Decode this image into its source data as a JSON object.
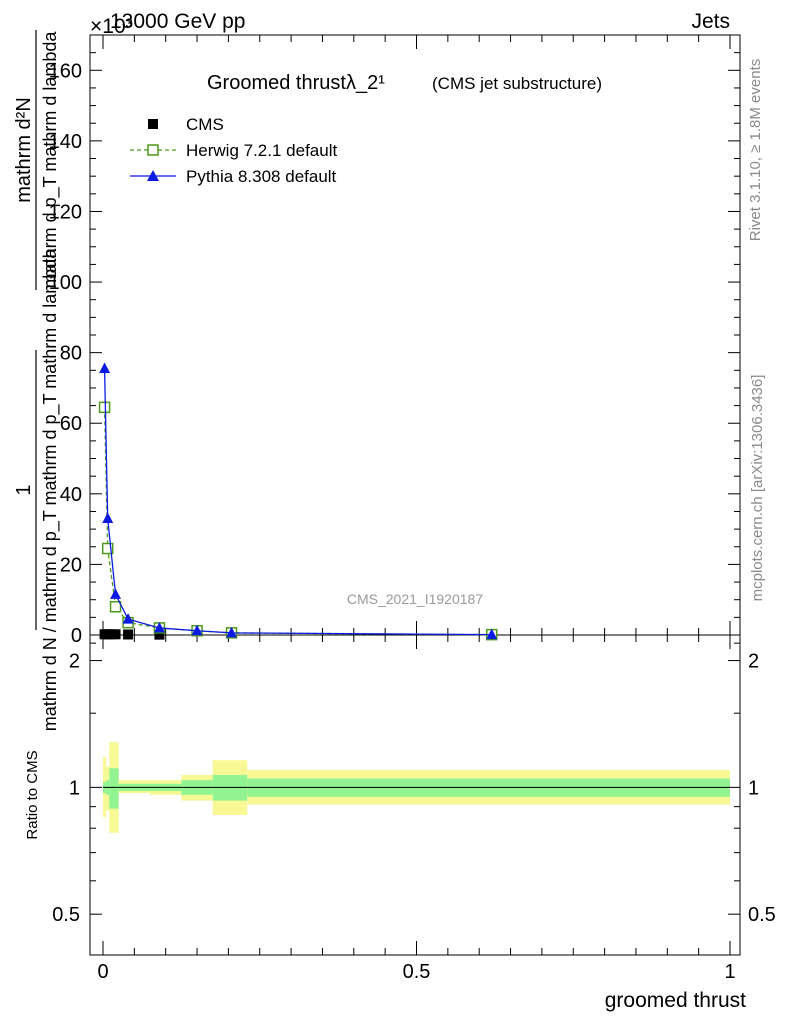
{
  "header": {
    "exponent": "×10³",
    "energy": "13000 GeV pp",
    "process": "Jets"
  },
  "side_labels": {
    "rivet": "Rivet 3.1.10, ≥ 1.8M events",
    "mcplots": "mcplots.cern.ch [arXiv:1306.3436]"
  },
  "watermark": "CMS_2021_I1920187",
  "chart_data": [
    {
      "type": "line",
      "panel": "main",
      "title": "Groomed thrustλ_2¹",
      "subtitle": "(CMS jet substructure)",
      "ylabel_numerator": "1",
      "ylabel_denominator": "mathrm d N / mathrm d p_T mathrm d p_T mathrm d lambda",
      "ylabel_right": "mathrm d²N",
      "xlim": [
        0,
        1
      ],
      "ylim": [
        0,
        170
      ],
      "yticks": [
        0,
        20,
        40,
        60,
        80,
        100,
        120,
        140,
        160
      ],
      "ytick_labels": [
        "0",
        "20",
        "40",
        "60",
        "80",
        "100",
        "120",
        "140",
        "160"
      ],
      "legend_position": "top-left",
      "series": [
        {
          "name": "CMS",
          "style": "markers",
          "marker": "filled-square",
          "color": "#000000",
          "x": [
            0.0025,
            0.0075,
            0.0125,
            0.02,
            0.04,
            0.09,
            0.62
          ],
          "y": [
            0.2,
            0.2,
            0.2,
            0.2,
            0.15,
            0.1,
            0.1
          ]
        },
        {
          "name": "Herwig 7.2.1 default",
          "style": "dashed-line",
          "marker": "open-square",
          "color": "#4d9a1c",
          "x": [
            0.0025,
            0.0075,
            0.02,
            0.04,
            0.09,
            0.15,
            0.205,
            0.62
          ],
          "y": [
            64.5,
            24.5,
            8,
            3.5,
            2.0,
            1.2,
            0.6,
            0.1
          ]
        },
        {
          "name": "Pythia 8.308 default",
          "style": "solid-line",
          "marker": "filled-triangle",
          "color": "#0b1be3",
          "x": [
            0.0025,
            0.0075,
            0.02,
            0.04,
            0.09,
            0.15,
            0.205,
            0.62
          ],
          "y": [
            75.5,
            33,
            11.5,
            4.5,
            2.0,
            1.2,
            0.6,
            0.1
          ]
        }
      ]
    },
    {
      "type": "area",
      "panel": "ratio",
      "ylabel": "Ratio to CMS",
      "xlabel": "groomed thrust",
      "xlim": [
        0,
        1
      ],
      "ylim": [
        0.4,
        2.3
      ],
      "log_y": true,
      "yticks": [
        0.5,
        1,
        2
      ],
      "ytick_labels": [
        "0.5",
        "1",
        "2"
      ],
      "xticks": [
        0,
        0.5,
        1
      ],
      "xtick_labels": [
        "0",
        "0.5",
        "1"
      ],
      "reference": 1,
      "bins": [
        {
          "lo": 0.0,
          "hi": 0.005,
          "stat_lo": 0.97,
          "stat_hi": 1.03,
          "tot_lo": 0.85,
          "tot_hi": 1.18
        },
        {
          "lo": 0.005,
          "hi": 0.01,
          "stat_lo": 0.96,
          "stat_hi": 1.04,
          "tot_lo": 0.88,
          "tot_hi": 1.12
        },
        {
          "lo": 0.01,
          "hi": 0.025,
          "stat_lo": 0.89,
          "stat_hi": 1.11,
          "tot_lo": 0.78,
          "tot_hi": 1.28
        },
        {
          "lo": 0.025,
          "hi": 0.075,
          "stat_lo": 0.98,
          "stat_hi": 1.02,
          "tot_lo": 0.97,
          "tot_hi": 1.04
        },
        {
          "lo": 0.075,
          "hi": 0.125,
          "stat_lo": 0.98,
          "stat_hi": 1.02,
          "tot_lo": 0.96,
          "tot_hi": 1.04
        },
        {
          "lo": 0.125,
          "hi": 0.175,
          "stat_lo": 0.96,
          "stat_hi": 1.04,
          "tot_lo": 0.93,
          "tot_hi": 1.07
        },
        {
          "lo": 0.175,
          "hi": 0.23,
          "stat_lo": 0.93,
          "stat_hi": 1.07,
          "tot_lo": 0.86,
          "tot_hi": 1.16
        },
        {
          "lo": 0.23,
          "hi": 1.0,
          "stat_lo": 0.95,
          "stat_hi": 1.05,
          "tot_lo": 0.91,
          "tot_hi": 1.1
        }
      ]
    }
  ],
  "colors": {
    "stat_band": "#91f491",
    "total_band": "#f8f895",
    "herwig": "#4d9a1c",
    "pythia": "#0b1be3",
    "data": "#000000"
  }
}
